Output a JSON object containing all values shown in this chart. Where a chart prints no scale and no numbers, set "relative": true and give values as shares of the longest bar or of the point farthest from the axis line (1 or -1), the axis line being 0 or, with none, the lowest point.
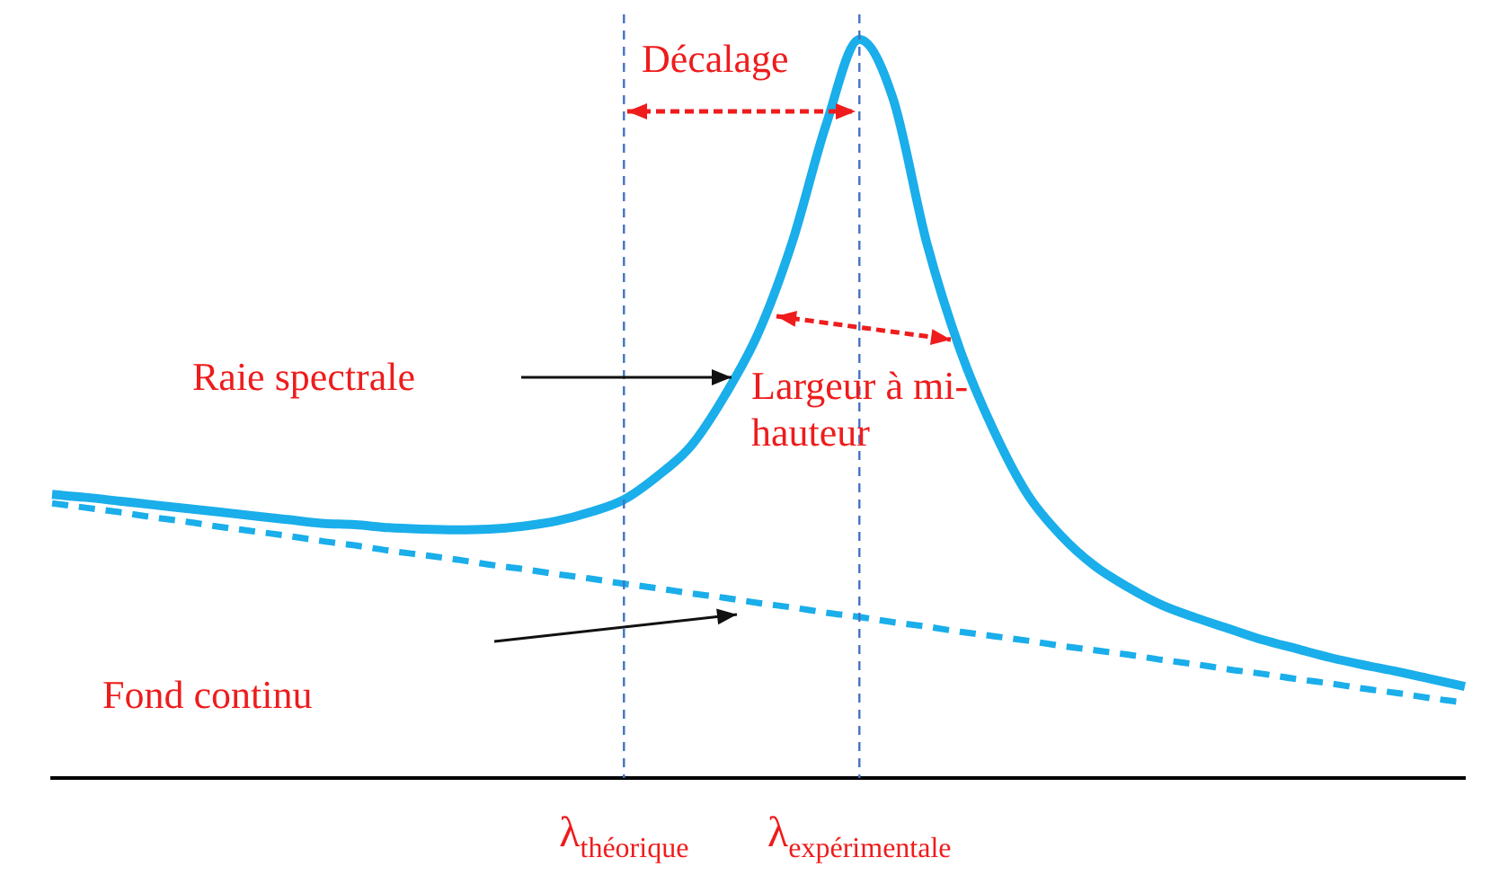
{
  "chart_data": {
    "type": "line",
    "relative": true,
    "categories": [
      null,
      null,
      null,
      null,
      null,
      null,
      null,
      null,
      null,
      null,
      null,
      null,
      null,
      null,
      null,
      null,
      null,
      "λ$_{théorique}$",
      null,
      null,
      null,
      null,
      null,
      null,
      "λ$_{expérimentale}$",
      null,
      null,
      null,
      null,
      null,
      null,
      null,
      null,
      null,
      null,
      null,
      null,
      null,
      null,
      null,
      null,
      null,
      null
    ],
    "series": [
      {
        "color": "#1aaeea",
        "line_style": "solid",
        "values": [
          0.384,
          0.38,
          0.375,
          0.37,
          0.365,
          0.36,
          0.355,
          0.35,
          0.345,
          0.343,
          0.339,
          0.337,
          0.336,
          0.337,
          0.341,
          0.348,
          0.36,
          0.377,
          0.409,
          0.45,
          0.518,
          0.603,
          0.725,
          0.883,
          1.0,
          0.92,
          0.725,
          0.579,
          0.47,
          0.384,
          0.328,
          0.287,
          0.258,
          0.234,
          0.217,
          0.202,
          0.187,
          0.175,
          0.163,
          0.153,
          0.144,
          0.134,
          0.124
        ]
      },
      {
        "color": "#1aaeea",
        "line_style": "dashed",
        "values": [
          0.372,
          0.366,
          0.36,
          0.353,
          0.347,
          0.34,
          0.334,
          0.328,
          0.321,
          0.315,
          0.308,
          0.302,
          0.296,
          0.289,
          0.283,
          0.276,
          0.27,
          0.263,
          0.257,
          0.25,
          0.244,
          0.237,
          0.231,
          0.224,
          0.218,
          0.211,
          0.205,
          0.198,
          0.192,
          0.186,
          0.179,
          0.173,
          0.167,
          0.16,
          0.154,
          0.147,
          0.141,
          0.134,
          0.128,
          0.121,
          0.115,
          0.108,
          0.102
        ]
      }
    ],
    "marker": "none",
    "legend": false,
    "grid": false,
    "ref_lines": [
      {
        "axis": "x",
        "value": "λ$_{théorique}$",
        "color": "#4472c4",
        "line_style": "dashed"
      },
      {
        "axis": "x",
        "value": "λ$_{expérimentale}$",
        "color": "#4472c4",
        "line_style": "dashed"
      }
    ],
    "annotations": [
      "Décalage",
      "Raie spectrale",
      "Largeur à mi-hauteur",
      "Fond continu"
    ]
  }
}
